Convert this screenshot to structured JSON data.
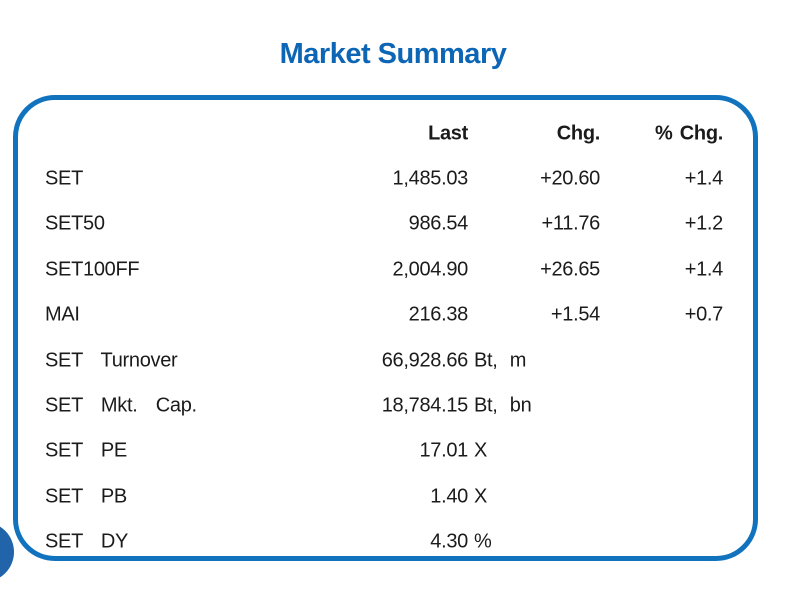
{
  "title": "Market Summary",
  "colors": {
    "accent_blue": "#1173bd",
    "title_blue": "#0d66b5",
    "circle_blue": "#2164aa",
    "text_color": "#1b1b1b"
  },
  "table": {
    "headers": {
      "last": "Last",
      "chg": "Chg.",
      "pct_chg": "% Chg."
    },
    "rows": [
      {
        "label": "SET",
        "last": "1,485.03",
        "unit": "",
        "chg": "+20.60",
        "pct_chg": "+1.4"
      },
      {
        "label": "SET50",
        "last": "986.54",
        "unit": "",
        "chg": "+11.76",
        "pct_chg": "+1.2"
      },
      {
        "label": "SET100FF",
        "last": "2,004.90",
        "unit": "",
        "chg": "+26.65",
        "pct_chg": "+1.4"
      },
      {
        "label": "MAI",
        "last": "216.38",
        "unit": "",
        "chg": "+1.54",
        "pct_chg": "+0.7"
      },
      {
        "label": "SET Turnover",
        "last": "66,928.66",
        "unit": "Bt, m",
        "chg": "",
        "pct_chg": ""
      },
      {
        "label": "SET Mkt. Cap.",
        "last": "18,784.15",
        "unit": "Bt, bn",
        "chg": "",
        "pct_chg": ""
      },
      {
        "label": "SET PE",
        "last": "17.01",
        "unit": "X",
        "chg": "",
        "pct_chg": ""
      },
      {
        "label": "SET PB",
        "last": "1.40",
        "unit": "X",
        "chg": "",
        "pct_chg": ""
      },
      {
        "label": "SET DY",
        "last": "4.30",
        "unit": "%",
        "chg": "",
        "pct_chg": ""
      }
    ]
  }
}
